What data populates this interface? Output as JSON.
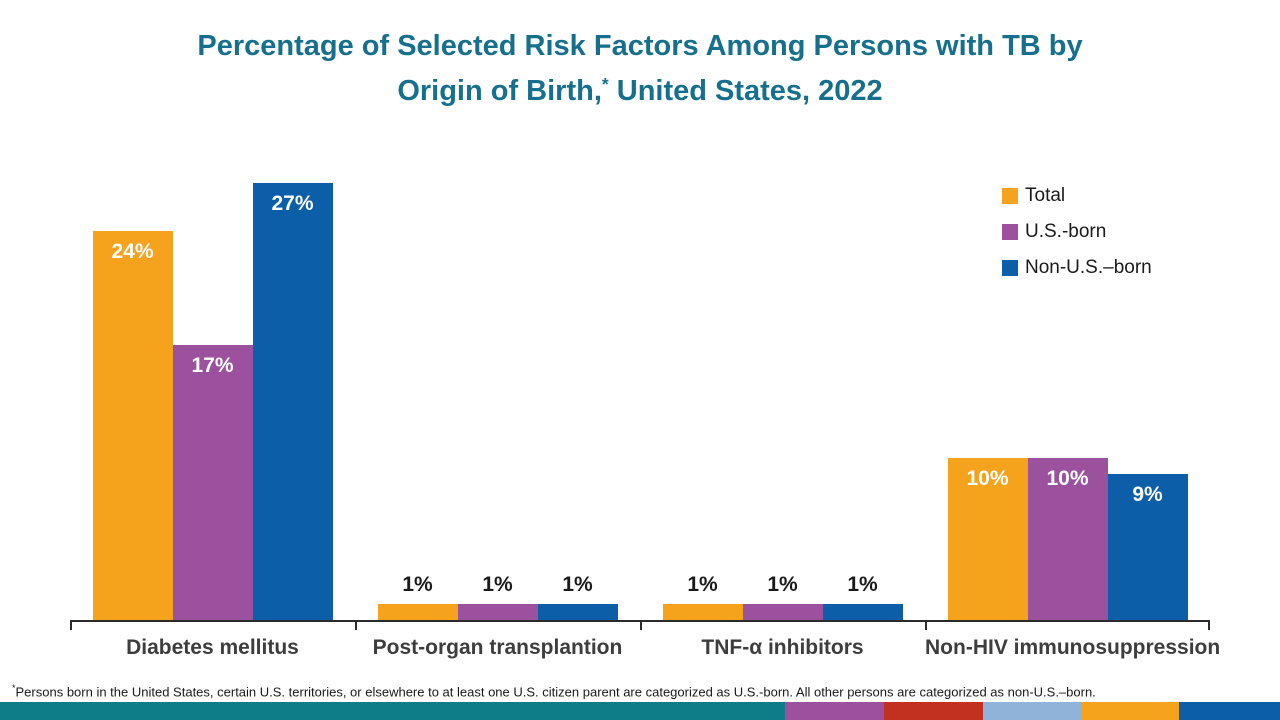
{
  "title": {
    "line1": "Percentage of Selected Risk Factors Among Persons with TB by",
    "line2_pre": "Origin of Birth,",
    "line2_sup": "*",
    "line2_post": " United States, 2022",
    "color": "#16708D"
  },
  "chart_data": {
    "type": "bar",
    "title": "Percentage of Selected Risk Factors Among Persons with TB by Origin of Birth, United States, 2022",
    "categories": [
      "Diabetes mellitus",
      "Post-organ transplantion",
      "TNF-α inhibitors",
      "Non-HIV immunosuppression"
    ],
    "series": [
      {
        "name": "Total",
        "color": "#F5A21D",
        "values": [
          24,
          1,
          1,
          10
        ],
        "labels": [
          "24%",
          "1%",
          "1%",
          "10%"
        ]
      },
      {
        "name": "U.S.-born",
        "color": "#9C519F",
        "values": [
          17,
          1,
          1,
          10
        ],
        "labels": [
          "17%",
          "1%",
          "1%",
          "10%"
        ]
      },
      {
        "name": "Non-U.S.–born",
        "color": "#0C5EA8",
        "values": [
          27,
          1,
          1,
          9
        ],
        "labels": [
          "27%",
          "1%",
          "1%",
          "9%"
        ]
      }
    ],
    "xlabel": "",
    "ylabel": "",
    "ylim": [
      0,
      27.5
    ],
    "grid": false,
    "y_axis_shown": false,
    "legend_position": "top-right",
    "value_labels_shown": true
  },
  "footnote": {
    "sup": "*",
    "text": "Persons born in the United States, certain U.S. territories, or elsewhere to at least one U.S. citizen parent are categorized as U.S.-born. All other persons are categorized as non-U.S.–born."
  },
  "footer_strip": {
    "segments": [
      {
        "name": "teal",
        "color": "#0F7D87",
        "width_pct": 61.3
      },
      {
        "name": "purple",
        "color": "#9C519F",
        "width_pct": 7.8
      },
      {
        "name": "red",
        "color": "#C23020",
        "width_pct": 7.7
      },
      {
        "name": "light-blue",
        "color": "#8FB3D9",
        "width_pct": 7.7
      },
      {
        "name": "orange",
        "color": "#F5A21D",
        "width_pct": 7.6
      },
      {
        "name": "blue",
        "color": "#0C5EA8",
        "width_pct": 7.9
      }
    ]
  }
}
